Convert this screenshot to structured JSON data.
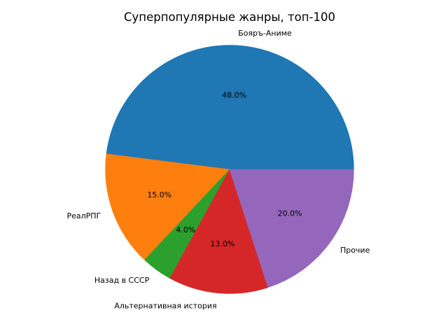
{
  "chart_data": {
    "type": "pie",
    "title": "Суперпопулярные жанры, топ-100",
    "start_angle_deg": 0,
    "direction": "counterclockwise",
    "slices": [
      {
        "label": "Бояръ-Аниме",
        "value": 48.0,
        "pct_label": "48.0%",
        "color": "#1f77b4"
      },
      {
        "label": "РеалРПГ",
        "value": 15.0,
        "pct_label": "15.0%",
        "color": "#ff7f0e"
      },
      {
        "label": "Назад в СССР",
        "value": 4.0,
        "pct_label": "4.0%",
        "color": "#2ca02c"
      },
      {
        "label": "Альтернативная история",
        "value": 13.0,
        "pct_label": "13.0%",
        "color": "#d62728"
      },
      {
        "label": "Прочие",
        "value": 20.0,
        "pct_label": "20.0%",
        "color": "#9467bd"
      }
    ]
  }
}
